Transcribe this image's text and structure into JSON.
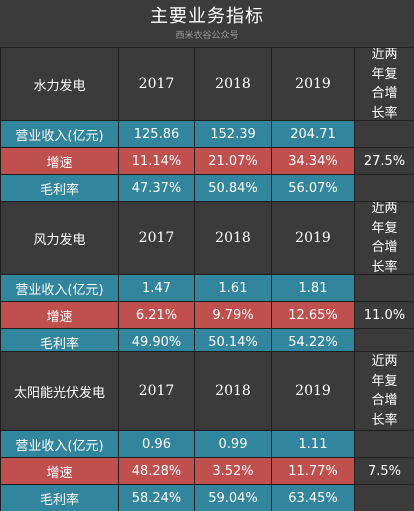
{
  "page": {
    "title": "主要业务指标",
    "subtitle": "西米衣谷公众号"
  },
  "sections": [
    {
      "name": "水力发电",
      "years": [
        "2017",
        "2018",
        "2019"
      ],
      "cagr_label_lines": [
        "近两",
        "年复",
        "合增",
        "长率"
      ],
      "rows": [
        {
          "label": "营业收入(亿元)",
          "values": [
            "125.86",
            "152.39",
            "204.71"
          ]
        },
        {
          "label": "增速",
          "values": [
            "11.14%",
            "21.07%",
            "34.34%"
          ]
        },
        {
          "label": "毛利率",
          "values": [
            "47.37%",
            "50.84%",
            "56.07%"
          ]
        }
      ],
      "cagr": "27.5%"
    },
    {
      "name": "风力发电",
      "years": [
        "2017",
        "2018",
        "2019"
      ],
      "cagr_label_lines": [
        "近两",
        "年复",
        "合增",
        "长率"
      ],
      "rows": [
        {
          "label": "营业收入(亿元)",
          "values": [
            "1.47",
            "1.61",
            "1.81"
          ]
        },
        {
          "label": "增速",
          "values": [
            "6.21%",
            "9.79%",
            "12.65%"
          ]
        },
        {
          "label": "毛利率",
          "values": [
            "49.90%",
            "50.14%",
            "54.22%"
          ]
        }
      ],
      "cagr": "11.0%"
    },
    {
      "name": "太阳能光伏发电",
      "years": [
        "2017",
        "2018",
        "2019"
      ],
      "cagr_label_lines": [
        "近两",
        "年复",
        "合增",
        "长率"
      ],
      "rows": [
        {
          "label": "营业收入(亿元)",
          "values": [
            "0.96",
            "0.99",
            "1.11"
          ]
        },
        {
          "label": "增速",
          "values": [
            "48.28%",
            "3.52%",
            "11.77%"
          ]
        },
        {
          "label": "毛利率",
          "values": [
            "58.24%",
            "59.04%",
            "63.45%"
          ]
        }
      ],
      "cagr": "7.5%"
    }
  ],
  "colors": {
    "header_bg": "#3b3b3b",
    "revenue_row": "#31859c",
    "growth_row": "#c0504d",
    "margin_row": "#31859c"
  }
}
